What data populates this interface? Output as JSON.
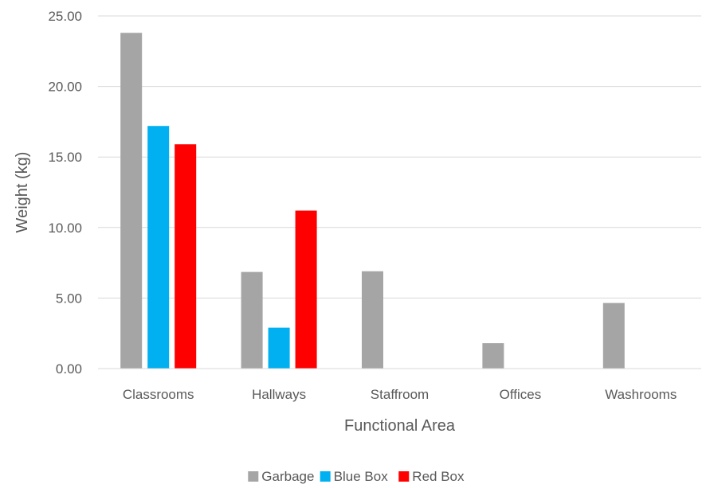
{
  "chart_data": {
    "type": "bar",
    "xlabel": "Functional Area",
    "ylabel": "Weight (kg)",
    "ylim": [
      0,
      25
    ],
    "yticks": [
      "0.00",
      "5.00",
      "10.00",
      "15.00",
      "20.00",
      "25.00"
    ],
    "grid": true,
    "legend_position": "bottom",
    "categories": [
      "Classrooms",
      "Hallways",
      "Staffroom",
      "Offices",
      "Washrooms"
    ],
    "series": [
      {
        "name": "Garbage",
        "color": "#a5a5a5",
        "values": [
          23.8,
          6.85,
          6.9,
          1.8,
          4.65
        ]
      },
      {
        "name": "Blue Box",
        "color": "#00b0f0",
        "values": [
          17.2,
          2.9,
          0,
          0,
          0
        ]
      },
      {
        "name": "Red Box",
        "color": "#ff0000",
        "values": [
          15.9,
          11.2,
          0,
          0,
          0
        ]
      }
    ]
  }
}
